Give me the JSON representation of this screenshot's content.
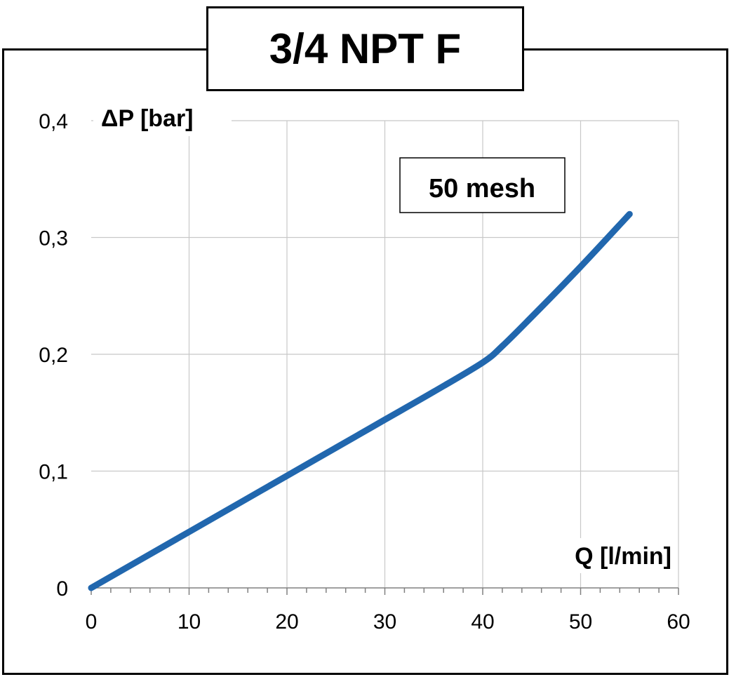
{
  "title": "3/4 NPT F",
  "chart_data": {
    "type": "line",
    "title": "3/4 NPT F",
    "xlabel": "Q  [l/min]",
    "ylabel": "ΔP  [bar]",
    "xlim": [
      0,
      60
    ],
    "ylim": [
      0,
      0.4
    ],
    "x_ticks": [
      0,
      10,
      20,
      30,
      40,
      50,
      60
    ],
    "x_tick_labels": [
      "0",
      "10",
      "20",
      "30",
      "40",
      "50",
      "60"
    ],
    "y_ticks": [
      0,
      0.1,
      0.2,
      0.3,
      0.4
    ],
    "y_tick_labels": [
      "0",
      "0,1",
      "0,2",
      "0,3",
      "0,4"
    ],
    "grid": true,
    "annotation": "50 mesh",
    "series_color": "#2167ae",
    "series": [
      {
        "x": [
          0,
          5,
          10,
          15,
          20,
          25,
          30,
          35,
          40,
          42,
          45,
          50,
          55
        ],
        "y": [
          0,
          0.024,
          0.048,
          0.072,
          0.096,
          0.12,
          0.144,
          0.168,
          0.193,
          0.207,
          0.232,
          0.275,
          0.32
        ]
      }
    ]
  }
}
